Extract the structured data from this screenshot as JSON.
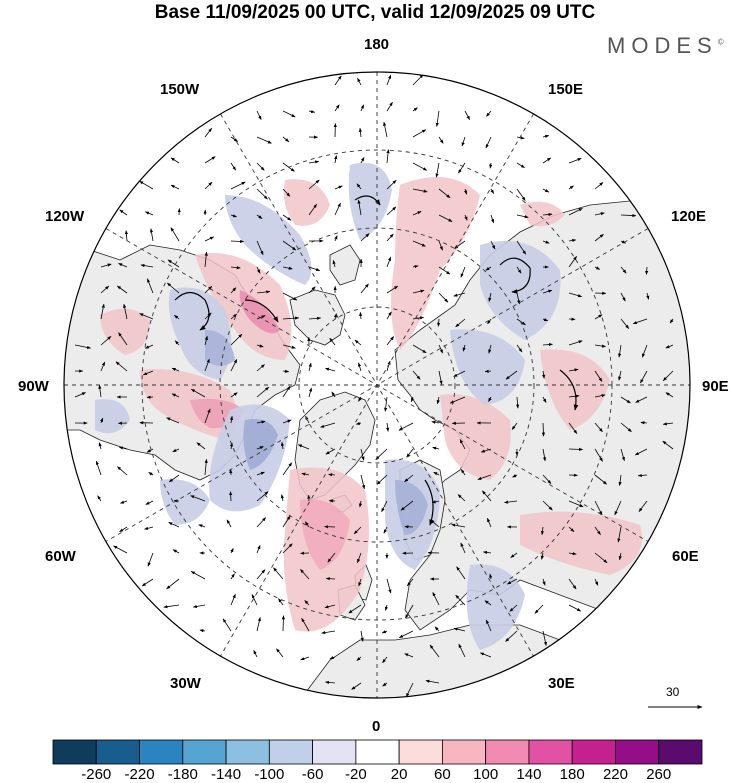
{
  "title": "Base 11/09/2025 00 UTC, valid 12/09/2025 09 UTC",
  "brand": {
    "name": "MODES",
    "mark": "©"
  },
  "longitude_labels": {
    "top": "180",
    "bottom": "0",
    "left": "90W",
    "right": "90E",
    "upper_left": "150W",
    "upper_right": "150E",
    "mid_upper_left": "120W",
    "mid_upper_right": "120E",
    "mid_lower_left": "60W",
    "mid_lower_right": "60E",
    "lower_left": "30W",
    "lower_right": "30E"
  },
  "wind_reference": {
    "value": "30",
    "unit_arrow": "reference-vector"
  },
  "colorbar": {
    "ticks": [
      "-260",
      "-220",
      "-180",
      "-140",
      "-100",
      "-60",
      "-20",
      "20",
      "60",
      "100",
      "140",
      "180",
      "220",
      "260"
    ],
    "colors": [
      "#0f3b5c",
      "#175d8e",
      "#2a84bf",
      "#55a5d3",
      "#8cbfe0",
      "#bfd0e8",
      "#e3e3f3",
      "#ffffff",
      "#fcdcdc",
      "#f8b6c2",
      "#f28ab1",
      "#e252a4",
      "#c4208f",
      "#960d88",
      "#5b0a6e"
    ]
  },
  "colors": {
    "land": "#ececec",
    "ocean": "#ffffff",
    "positive_anomaly": "#f2c4c9",
    "negative_anomaly": "#c8cde6",
    "grid": "#333333",
    "coast": "#222222"
  }
}
